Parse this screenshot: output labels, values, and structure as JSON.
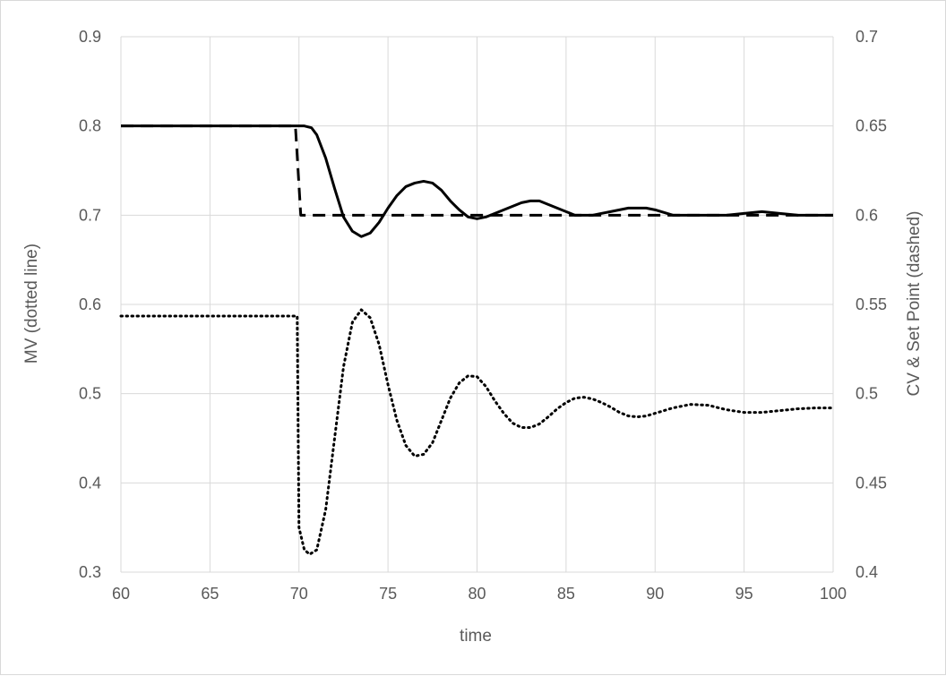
{
  "chart_data": {
    "type": "line",
    "xlabel": "time",
    "ylabel_left": "MV (dotted line)",
    "ylabel_right": "CV & Set Point (dashed)",
    "xlim": [
      60,
      100
    ],
    "ylim_left": [
      0.3,
      0.9
    ],
    "ylim_right": [
      0.4,
      0.7
    ],
    "grid": true,
    "legend": "none",
    "x_ticks": [
      "60",
      "65",
      "70",
      "75",
      "80",
      "85",
      "90",
      "95",
      "100"
    ],
    "y_left_ticks": [
      "0.3",
      "0.4",
      "0.5",
      "0.6",
      "0.7",
      "0.8",
      "0.9"
    ],
    "y_right_ticks": [
      "0.4",
      "0.45",
      "0.5",
      "0.55",
      "0.6",
      "0.65",
      "0.7"
    ],
    "series": [
      {
        "axis": "left",
        "style": "dotted",
        "color": "#000000",
        "x": [
          60,
          65,
          69.9,
          70,
          70.3,
          70.6,
          71,
          71.5,
          72,
          72.5,
          73,
          73.5,
          74,
          74.5,
          75,
          75.5,
          76,
          76.5,
          77,
          77.5,
          78,
          78.5,
          79,
          79.5,
          80,
          80.5,
          81,
          81.5,
          82,
          82.5,
          83,
          83.5,
          84,
          84.5,
          85,
          85.5,
          86,
          86.5,
          87,
          87.5,
          88,
          88.5,
          89,
          89.5,
          90,
          91,
          92,
          93,
          94,
          95,
          96,
          97,
          98,
          99,
          100
        ],
        "y": [
          0.587,
          0.587,
          0.587,
          0.35,
          0.325,
          0.32,
          0.325,
          0.37,
          0.45,
          0.53,
          0.58,
          0.594,
          0.585,
          0.555,
          0.51,
          0.47,
          0.442,
          0.43,
          0.432,
          0.445,
          0.47,
          0.495,
          0.512,
          0.52,
          0.519,
          0.508,
          0.492,
          0.478,
          0.467,
          0.462,
          0.462,
          0.466,
          0.474,
          0.483,
          0.49,
          0.495,
          0.496,
          0.494,
          0.49,
          0.485,
          0.479,
          0.475,
          0.474,
          0.475,
          0.478,
          0.484,
          0.488,
          0.487,
          0.482,
          0.479,
          0.479,
          0.481,
          0.483,
          0.484,
          0.484
        ]
      },
      {
        "axis": "right",
        "style": "solid",
        "color": "#000000",
        "x": [
          60,
          65,
          69.9,
          70.3,
          70.7,
          71,
          71.5,
          72,
          72.5,
          73,
          73.5,
          74,
          74.5,
          75,
          75.5,
          76,
          76.5,
          77,
          77.5,
          78,
          78.5,
          79,
          79.5,
          80,
          80.5,
          81,
          81.5,
          82,
          82.5,
          83,
          83.5,
          84,
          84.5,
          85,
          85.5,
          86,
          86.5,
          87,
          87.5,
          88,
          88.5,
          89,
          89.5,
          90,
          91,
          92,
          93,
          94,
          95,
          96,
          97,
          98,
          99,
          100
        ],
        "y": [
          0.65,
          0.65,
          0.65,
          0.65,
          0.649,
          0.645,
          0.632,
          0.615,
          0.599,
          0.591,
          0.588,
          0.59,
          0.596,
          0.604,
          0.611,
          0.616,
          0.618,
          0.619,
          0.618,
          0.614,
          0.608,
          0.603,
          0.599,
          0.598,
          0.599,
          0.601,
          0.603,
          0.605,
          0.607,
          0.608,
          0.608,
          0.606,
          0.604,
          0.602,
          0.6,
          0.6,
          0.6,
          0.601,
          0.602,
          0.603,
          0.604,
          0.604,
          0.604,
          0.603,
          0.6,
          0.6,
          0.6,
          0.6,
          0.601,
          0.602,
          0.601,
          0.6,
          0.6,
          0.6
        ]
      },
      {
        "axis": "right",
        "style": "dashed",
        "color": "#000000",
        "x": [
          60,
          69.8,
          69.8,
          70.1,
          100
        ],
        "y": [
          0.65,
          0.65,
          0.65,
          0.6,
          0.6
        ]
      }
    ]
  }
}
